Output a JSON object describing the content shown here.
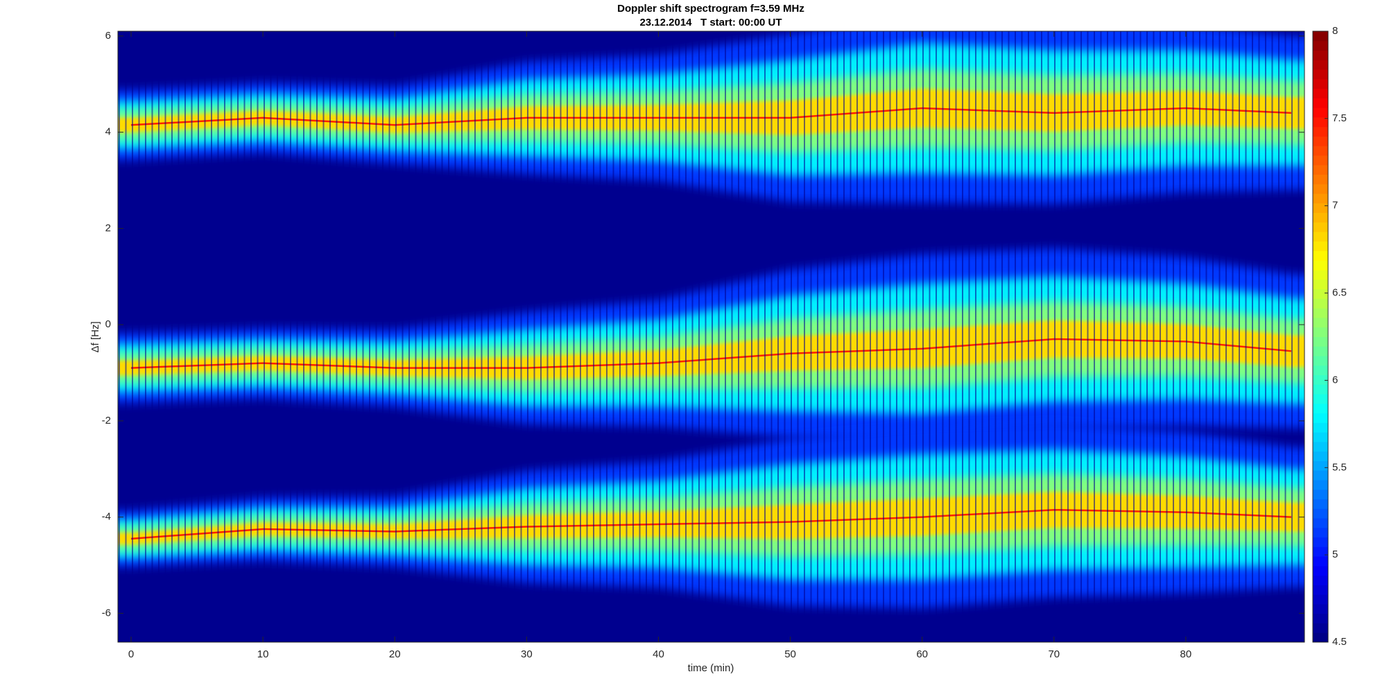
{
  "chart_data": {
    "type": "spectrogram",
    "title": "Doppler shift spectrogram f=3.59 MHz",
    "subtitle": "23.12.2014   T start: 00:00 UT",
    "x_label": "time (min)",
    "y_label": "Δf [Hz]",
    "x": [
      0,
      10,
      20,
      30,
      40,
      50,
      60,
      70,
      80,
      88
    ],
    "bands": [
      {
        "values": [
          4.15,
          4.3,
          4.15,
          4.3,
          4.3,
          4.3,
          4.5,
          4.4,
          4.5,
          4.4
        ],
        "spread": [
          0.5,
          0.5,
          0.55,
          0.8,
          0.9,
          1.2,
          1.35,
          1.3,
          1.2,
          1.1
        ]
      },
      {
        "values": [
          -0.9,
          -0.8,
          -0.9,
          -0.9,
          -0.8,
          -0.6,
          -0.5,
          -0.3,
          -0.35,
          -0.55
        ],
        "spread": [
          0.5,
          0.5,
          0.55,
          0.8,
          0.9,
          1.2,
          1.35,
          1.3,
          1.2,
          1.1
        ]
      },
      {
        "values": [
          -4.45,
          -4.25,
          -4.3,
          -4.2,
          -4.15,
          -4.1,
          -4.0,
          -3.85,
          -3.9,
          -4.0
        ],
        "spread": [
          0.4,
          0.45,
          0.5,
          0.8,
          0.9,
          1.2,
          1.3,
          1.25,
          1.15,
          1.0
        ]
      }
    ],
    "xlim": [
      -1,
      89
    ],
    "xticks": [
      0,
      10,
      20,
      30,
      40,
      50,
      60,
      70,
      80
    ],
    "ylim": [
      -6.6,
      6.1
    ],
    "yticks": [
      -6,
      -4,
      -2,
      0,
      2,
      4,
      6
    ],
    "clim": [
      4.5,
      8
    ],
    "cticks": [
      4.5,
      5,
      5.5,
      6,
      6.5,
      7,
      7.5,
      8
    ],
    "colormap": "jet"
  }
}
